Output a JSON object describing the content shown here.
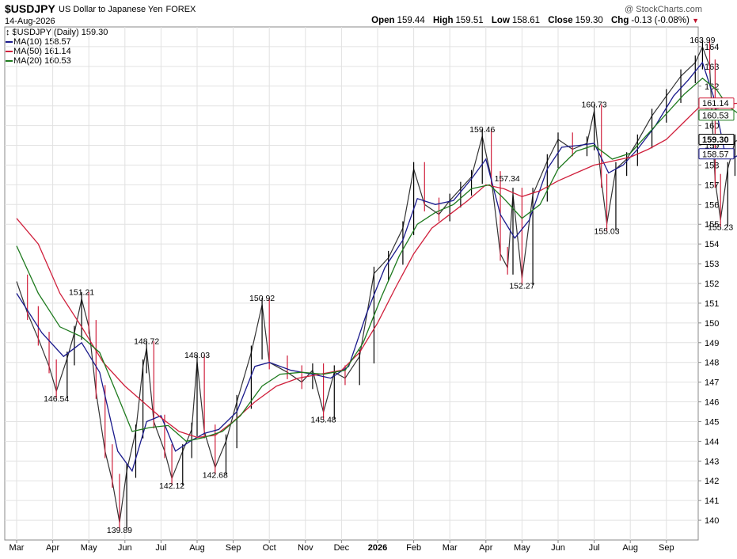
{
  "header": {
    "symbol": "$USDJPY",
    "description": "US Dollar to Japanese Yen",
    "exchange": "FOREX",
    "date": "14-Aug-2026",
    "brand": "@ StockCharts.com",
    "ohlc": {
      "open_label": "Open",
      "open": "159.44",
      "high_label": "High",
      "high": "159.51",
      "low_label": "Low",
      "low": "158.61",
      "close_label": "Close",
      "close": "159.30",
      "chg_label": "Chg",
      "chg": "-0.13 (-0.08%)"
    }
  },
  "legend": [
    {
      "text": "↕ $USDJPY (Daily) 159.30",
      "color": "#000000"
    },
    {
      "text": "MA(10) 158.57",
      "color": "#1a1a8c"
    },
    {
      "text": "MA(50) 161.14",
      "color": "#d0203c"
    },
    {
      "text": "MA(20) 160.53",
      "color": "#1e7a1e"
    }
  ],
  "chart_data": {
    "type": "line",
    "title": "$USDJPY US Dollar to Japanese Yen FOREX",
    "x_ticks": [
      "Mar",
      "Apr",
      "May",
      "Jun",
      "Jul",
      "Aug",
      "Sep",
      "Oct",
      "Nov",
      "Dec",
      "2026",
      "Feb",
      "Mar",
      "Apr",
      "May",
      "Jun",
      "Jul",
      "Aug",
      "Sep"
    ],
    "ylim": [
      139,
      165
    ],
    "y_ticks": [
      140,
      141,
      142,
      143,
      144,
      145,
      146,
      147,
      148,
      149,
      150,
      151,
      152,
      153,
      154,
      155,
      156,
      157,
      158,
      159,
      160,
      161,
      162,
      163,
      164
    ],
    "grid": true,
    "price_series_name": "$USDJPY (Daily)",
    "price_points": [
      [
        0,
        152.1
      ],
      [
        0.3,
        150.5
      ],
      [
        0.6,
        149.2
      ],
      [
        0.9,
        147.8
      ],
      [
        1.1,
        146.54
      ],
      [
        1.4,
        148.2
      ],
      [
        1.6,
        149.5
      ],
      [
        1.8,
        151.21
      ],
      [
        2.0,
        149.8
      ],
      [
        2.2,
        146.5
      ],
      [
        2.45,
        143.5
      ],
      [
        2.65,
        142.0
      ],
      [
        2.85,
        139.89
      ],
      [
        3.05,
        142.5
      ],
      [
        3.3,
        144.5
      ],
      [
        3.5,
        147.8
      ],
      [
        3.6,
        148.72
      ],
      [
        3.8,
        145.0
      ],
      [
        4.1,
        143.5
      ],
      [
        4.3,
        142.12
      ],
      [
        4.6,
        143.5
      ],
      [
        4.85,
        144.6
      ],
      [
        5.0,
        148.03
      ],
      [
        5.2,
        144.5
      ],
      [
        5.5,
        142.68
      ],
      [
        5.8,
        144.0
      ],
      [
        6.1,
        146.0
      ],
      [
        6.5,
        148.5
      ],
      [
        6.8,
        150.92
      ],
      [
        7.0,
        148.0
      ],
      [
        7.5,
        147.5
      ],
      [
        7.9,
        147.0
      ],
      [
        8.2,
        147.6
      ],
      [
        8.5,
        145.48
      ],
      [
        8.8,
        147.5
      ],
      [
        9.1,
        147.2
      ],
      [
        9.5,
        148.3
      ],
      [
        9.9,
        152.5
      ],
      [
        10.3,
        153.3
      ],
      [
        10.7,
        154.8
      ],
      [
        11.0,
        157.8
      ],
      [
        11.3,
        156.0
      ],
      [
        11.7,
        155.5
      ],
      [
        12.0,
        156.2
      ],
      [
        12.3,
        156.8
      ],
      [
        12.6,
        157.4
      ],
      [
        12.9,
        159.46
      ],
      [
        13.15,
        157.34
      ],
      [
        13.4,
        153.5
      ],
      [
        13.6,
        152.8
      ],
      [
        13.75,
        156.5
      ],
      [
        14.0,
        152.27
      ],
      [
        14.3,
        156.5
      ],
      [
        14.7,
        158.2
      ],
      [
        15.0,
        159.3
      ],
      [
        15.4,
        158.8
      ],
      [
        15.8,
        159.1
      ],
      [
        16.0,
        160.73
      ],
      [
        16.2,
        157.2
      ],
      [
        16.35,
        155.03
      ],
      [
        16.6,
        157.8
      ],
      [
        16.9,
        158.3
      ],
      [
        17.2,
        159.2
      ],
      [
        17.6,
        160.5
      ],
      [
        18.0,
        161.5
      ],
      [
        18.4,
        162.5
      ],
      [
        18.8,
        163.2
      ],
      [
        19.0,
        163.99
      ],
      [
        19.2,
        163.0
      ],
      [
        19.35,
        157.2
      ],
      [
        19.5,
        155.23
      ],
      [
        19.7,
        157.8
      ],
      [
        19.9,
        159.2
      ],
      [
        20.05,
        159.3
      ]
    ],
    "series": [
      {
        "name": "MA(10)",
        "last": 158.57,
        "color": "#1a1a8c",
        "points": [
          [
            0,
            151.5
          ],
          [
            0.7,
            149.5
          ],
          [
            1.3,
            148.3
          ],
          [
            1.8,
            149.0
          ],
          [
            2.3,
            147.5
          ],
          [
            2.8,
            143.5
          ],
          [
            3.2,
            142.5
          ],
          [
            3.6,
            145.0
          ],
          [
            4.0,
            145.3
          ],
          [
            4.4,
            143.5
          ],
          [
            4.8,
            144.0
          ],
          [
            5.2,
            144.4
          ],
          [
            5.6,
            144.6
          ],
          [
            6.1,
            145.5
          ],
          [
            6.6,
            147.8
          ],
          [
            7.0,
            148.0
          ],
          [
            7.6,
            147.6
          ],
          [
            8.2,
            147.4
          ],
          [
            8.7,
            147.2
          ],
          [
            9.2,
            147.8
          ],
          [
            9.7,
            150.5
          ],
          [
            10.2,
            152.8
          ],
          [
            10.7,
            154.2
          ],
          [
            11.1,
            156.3
          ],
          [
            11.6,
            156.0
          ],
          [
            12.1,
            156.2
          ],
          [
            12.6,
            157.3
          ],
          [
            13.0,
            158.3
          ],
          [
            13.4,
            155.5
          ],
          [
            13.8,
            154.3
          ],
          [
            14.2,
            155.2
          ],
          [
            14.7,
            157.8
          ],
          [
            15.1,
            158.9
          ],
          [
            15.6,
            159.0
          ],
          [
            16.0,
            159.1
          ],
          [
            16.4,
            157.6
          ],
          [
            16.8,
            158.0
          ],
          [
            17.2,
            158.8
          ],
          [
            17.7,
            160.0
          ],
          [
            18.2,
            161.5
          ],
          [
            18.6,
            162.3
          ],
          [
            19.0,
            163.2
          ],
          [
            19.3,
            161.5
          ],
          [
            19.6,
            158.8
          ],
          [
            19.9,
            158.4
          ],
          [
            20.05,
            158.57
          ]
        ]
      },
      {
        "name": "MA(50)",
        "last": 161.14,
        "color": "#d0203c",
        "points": [
          [
            0,
            155.3
          ],
          [
            0.6,
            154.0
          ],
          [
            1.2,
            151.5
          ],
          [
            1.8,
            149.8
          ],
          [
            2.4,
            148.0
          ],
          [
            3.0,
            146.8
          ],
          [
            3.5,
            146.0
          ],
          [
            4.0,
            145.2
          ],
          [
            4.5,
            144.5
          ],
          [
            5.0,
            144.2
          ],
          [
            5.5,
            144.3
          ],
          [
            6.0,
            145.0
          ],
          [
            6.6,
            146.0
          ],
          [
            7.2,
            146.8
          ],
          [
            7.8,
            147.2
          ],
          [
            8.4,
            147.4
          ],
          [
            9.0,
            147.6
          ],
          [
            9.5,
            148.5
          ],
          [
            10.0,
            150.0
          ],
          [
            10.5,
            151.8
          ],
          [
            11.0,
            153.5
          ],
          [
            11.5,
            154.8
          ],
          [
            12.0,
            155.5
          ],
          [
            12.5,
            156.2
          ],
          [
            13.0,
            157.0
          ],
          [
            13.5,
            156.8
          ],
          [
            14.0,
            156.4
          ],
          [
            14.5,
            156.7
          ],
          [
            15.0,
            157.2
          ],
          [
            15.5,
            157.6
          ],
          [
            16.0,
            158.0
          ],
          [
            16.5,
            158.2
          ],
          [
            17.0,
            158.4
          ],
          [
            17.5,
            158.8
          ],
          [
            18.0,
            159.3
          ],
          [
            18.5,
            160.2
          ],
          [
            19.0,
            161.1
          ],
          [
            19.4,
            161.2
          ],
          [
            19.7,
            161.1
          ],
          [
            20.05,
            161.14
          ]
        ]
      },
      {
        "name": "MA(20)",
        "last": 160.53,
        "color": "#1e7a1e",
        "points": [
          [
            0,
            153.9
          ],
          [
            0.6,
            151.5
          ],
          [
            1.2,
            149.8
          ],
          [
            1.8,
            149.3
          ],
          [
            2.3,
            148.5
          ],
          [
            2.8,
            146.3
          ],
          [
            3.2,
            144.5
          ],
          [
            3.7,
            144.7
          ],
          [
            4.2,
            144.8
          ],
          [
            4.7,
            144.0
          ],
          [
            5.2,
            144.2
          ],
          [
            5.7,
            144.5
          ],
          [
            6.2,
            145.3
          ],
          [
            6.8,
            146.8
          ],
          [
            7.3,
            147.4
          ],
          [
            7.9,
            147.5
          ],
          [
            8.5,
            147.4
          ],
          [
            9.1,
            147.6
          ],
          [
            9.6,
            149.0
          ],
          [
            10.1,
            151.3
          ],
          [
            10.6,
            153.4
          ],
          [
            11.1,
            155.0
          ],
          [
            11.6,
            155.6
          ],
          [
            12.1,
            156.0
          ],
          [
            12.6,
            156.8
          ],
          [
            13.1,
            157.0
          ],
          [
            13.5,
            156.3
          ],
          [
            14.0,
            155.3
          ],
          [
            14.5,
            156.0
          ],
          [
            15.0,
            157.8
          ],
          [
            15.5,
            158.7
          ],
          [
            16.0,
            159.0
          ],
          [
            16.5,
            158.3
          ],
          [
            17.0,
            158.6
          ],
          [
            17.5,
            159.6
          ],
          [
            18.0,
            160.6
          ],
          [
            18.5,
            161.6
          ],
          [
            19.0,
            162.4
          ],
          [
            19.4,
            161.8
          ],
          [
            19.7,
            161.0
          ],
          [
            20.05,
            160.53
          ]
        ]
      }
    ],
    "annotations": [
      {
        "label": "151.21",
        "x": 1.8,
        "y": 151.21,
        "pos": "above"
      },
      {
        "label": "146.54",
        "x": 1.1,
        "y": 146.54,
        "pos": "below"
      },
      {
        "label": "148.72",
        "x": 3.6,
        "y": 148.72,
        "pos": "above"
      },
      {
        "label": "139.89",
        "x": 2.85,
        "y": 139.89,
        "pos": "below"
      },
      {
        "label": "142.12",
        "x": 4.3,
        "y": 142.12,
        "pos": "below"
      },
      {
        "label": "148.03",
        "x": 5.0,
        "y": 148.03,
        "pos": "above"
      },
      {
        "label": "142.68",
        "x": 5.5,
        "y": 142.68,
        "pos": "below"
      },
      {
        "label": "150.92",
        "x": 6.8,
        "y": 150.92,
        "pos": "above"
      },
      {
        "label": "145.48",
        "x": 8.5,
        "y": 145.48,
        "pos": "below"
      },
      {
        "label": "159.46",
        "x": 12.9,
        "y": 159.46,
        "pos": "above"
      },
      {
        "label": "157.34",
        "x": 13.15,
        "y": 157.34,
        "pos": "right"
      },
      {
        "label": "152.27",
        "x": 14.0,
        "y": 152.27,
        "pos": "below"
      },
      {
        "label": "160.73",
        "x": 16.0,
        "y": 160.73,
        "pos": "above"
      },
      {
        "label": "155.03",
        "x": 16.35,
        "y": 155.03,
        "pos": "below"
      },
      {
        "label": "163.99",
        "x": 19.0,
        "y": 163.99,
        "pos": "above"
      },
      {
        "label": "155.23",
        "x": 19.5,
        "y": 155.23,
        "pos": "below"
      }
    ],
    "right_axis_tags": [
      {
        "label": "161.14",
        "value": 161.14,
        "color": "#d0203c",
        "fill": "#ffffff"
      },
      {
        "label": "160.53",
        "value": 160.53,
        "color": "#1e7a1e",
        "fill": "#ffffff"
      },
      {
        "label": "159.30",
        "value": 159.3,
        "color": "#000000",
        "fill": "#ffffff"
      },
      {
        "label": "158.57",
        "value": 158.57,
        "color": "#1a1a8c",
        "fill": "#ffffff"
      }
    ]
  }
}
